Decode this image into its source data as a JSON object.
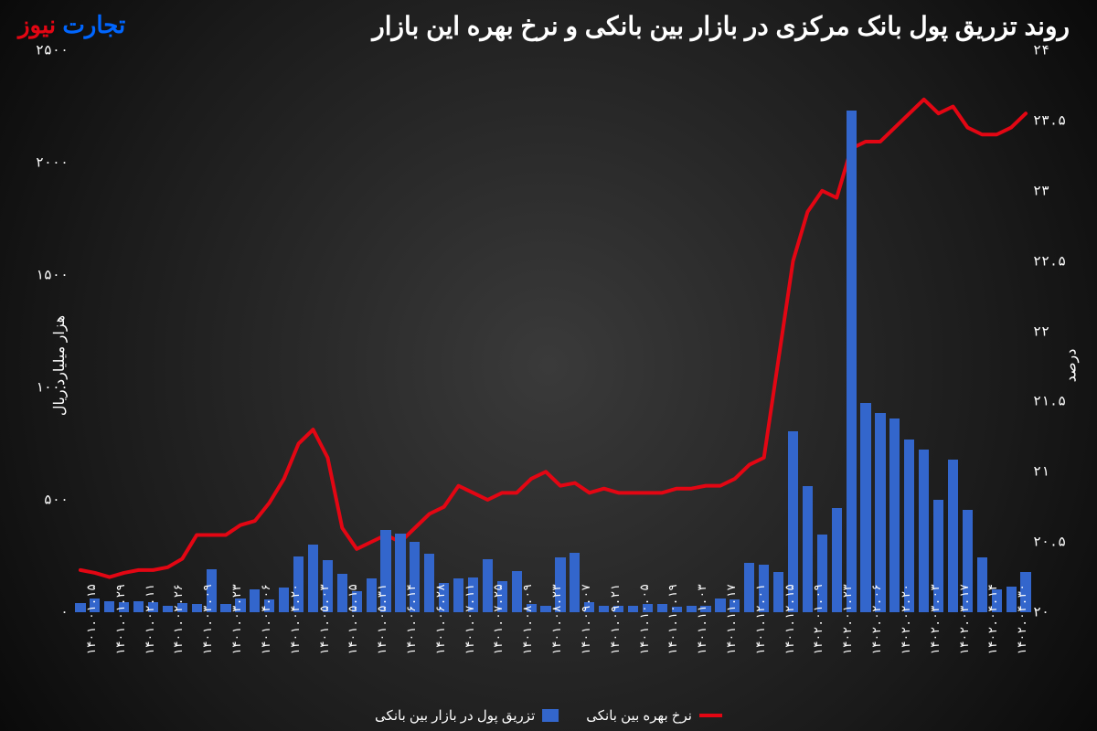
{
  "title": "روند تزریق پول بانک مرکزی در بازار بین بانکی و نرخ بهره این بازار",
  "logo": {
    "part1": "تجارت",
    "part2": "نیوز"
  },
  "y_left": {
    "label": "هزار میلیارد ریال",
    "min": 0,
    "max": 2500,
    "step": 500,
    "ticks": [
      0,
      500,
      1000,
      1500,
      2000,
      2500
    ]
  },
  "y_right": {
    "label": "درصد",
    "min": 20,
    "max": 24,
    "step": 0.5,
    "ticks": [
      20,
      20.5,
      21,
      21.5,
      22,
      22.5,
      23,
      23.5,
      24
    ]
  },
  "x_labels": [
    "1401.01.15",
    "1401.01.29",
    "1401.02.11",
    "1401.02.26",
    "1401.03.09",
    "1401.03.23",
    "1401.04.06",
    "1401.04.20",
    "1401.05.03",
    "1401.05.15",
    "1401.05.31",
    "1401.06.14",
    "1401.06.28",
    "1401.07.11",
    "1401.07.25",
    "1401.08.09",
    "1401.08.23",
    "1401.09.07",
    "1401.09.21",
    "1401.10.05",
    "1401.10.19",
    "1401.11.03",
    "1401.11.17",
    "1401.12.01",
    "1401.12.15",
    "1402.01.09",
    "1402.01.23",
    "1402.02.06",
    "1402.02.20",
    "1402.03.03",
    "1402.03.17",
    "1402.04.14",
    "1402.04.30"
  ],
  "bars": {
    "label": "تزریق پول در بازار بین بانکی",
    "color": "#3366cc",
    "values": [
      40,
      60,
      50,
      45,
      50,
      45,
      30,
      40,
      35,
      190,
      35,
      60,
      100,
      55,
      110,
      250,
      300,
      230,
      170,
      95,
      150,
      365,
      350,
      315,
      260,
      130,
      150,
      155,
      235,
      140,
      185,
      35,
      30,
      245,
      265,
      45,
      30,
      30,
      30,
      35,
      35,
      25,
      30,
      30,
      60,
      55,
      220,
      210,
      180,
      805,
      560,
      345,
      465,
      2230,
      930,
      885,
      860,
      770,
      725,
      500,
      680,
      455,
      245,
      100,
      115,
      180
    ]
  },
  "line": {
    "label": "نرخ بهره بین بانکی",
    "color": "#e30613",
    "width": 4,
    "values": [
      20.3,
      20.28,
      20.25,
      20.28,
      20.3,
      20.3,
      20.32,
      20.38,
      20.55,
      20.55,
      20.55,
      20.62,
      20.65,
      20.78,
      20.95,
      21.2,
      21.3,
      21.1,
      20.6,
      20.45,
      20.5,
      20.55,
      20.5,
      20.6,
      20.7,
      20.75,
      20.9,
      20.85,
      20.8,
      20.85,
      20.85,
      20.95,
      21.0,
      20.9,
      20.92,
      20.85,
      20.88,
      20.85,
      20.85,
      20.85,
      20.85,
      20.88,
      20.88,
      20.9,
      20.9,
      20.95,
      21.05,
      21.1,
      21.8,
      22.5,
      22.85,
      23.0,
      22.95,
      23.3,
      23.35,
      23.35,
      23.45,
      23.55,
      23.65,
      23.55,
      23.6,
      23.45,
      23.4,
      23.4,
      23.45,
      23.55
    ]
  },
  "styling": {
    "title_color": "#ffffff",
    "title_fontsize": 28,
    "tick_color": "#ffffff",
    "tick_fontsize": 15,
    "background": "radial-gradient #3a3a3a to #0a0a0a",
    "line_stroke_width": 4
  }
}
